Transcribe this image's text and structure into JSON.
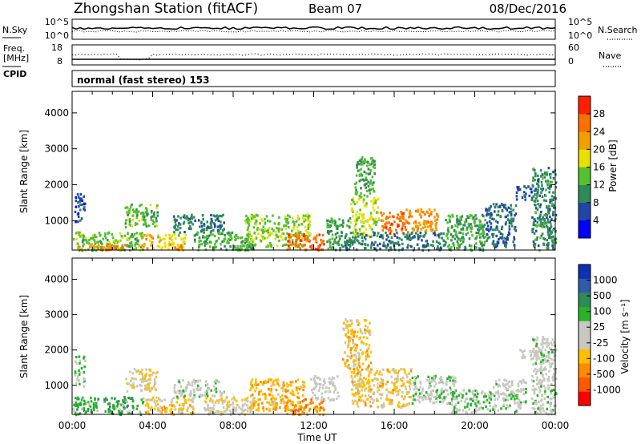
{
  "header": {
    "station": "Zhongshan Station (fitACF)",
    "beam": "Beam 07",
    "date": "08/Dec/2016"
  },
  "top_panels": {
    "nsky_label": "N.Sky",
    "nsearch_label": "N.Search",
    "nsky_ticks": [
      "10^5",
      "10^0"
    ],
    "nsearch_ticks": [
      "10^5",
      "10^0"
    ],
    "freq_label_1": "Freq.",
    "freq_label_2": "[MHz]",
    "freq_ticks": [
      "18",
      "8"
    ],
    "nave_ticks": [
      "60",
      "0"
    ],
    "nave_label": "Nave",
    "cpid_label": "CPID",
    "cpid_text": "normal (fast stereo) 153"
  },
  "colors": {
    "power": [
      "#0000ff",
      "#2046a8",
      "#2e8b57",
      "#55c030",
      "#e8e000",
      "#f0a000",
      "#ff7000",
      "#ff2000"
    ],
    "velocity": [
      "#ff0000",
      "#ff5a00",
      "#ff8c00",
      "#ffbf00",
      "#c8c8c0",
      "#c8c8c0",
      "#28b428",
      "#2e8b57",
      "#2f5ba8",
      "#1030b0"
    ]
  },
  "chart_data": [
    {
      "type": "heatmap",
      "name": "Power",
      "ylabel": "Slant Range [km]",
      "colorbar_label": "Power [dB]",
      "colorbar_ticks": [
        "28",
        "24",
        "20",
        "16",
        "12",
        "8",
        "4"
      ],
      "colorbar_range": [
        0,
        32
      ],
      "yticks": [
        "4000",
        "3000",
        "2000",
        "1000"
      ],
      "ylim": [
        180,
        4600
      ],
      "xlim_hours": [
        0,
        24
      ],
      "blobs": [
        {
          "t0": 0.0,
          "t1": 3.5,
          "r0": 200,
          "r1": 700,
          "v": 14
        },
        {
          "t0": 0.2,
          "t1": 2.8,
          "r0": 200,
          "r1": 380,
          "v": 24
        },
        {
          "t0": 0.1,
          "t1": 0.6,
          "r0": 1000,
          "r1": 1850,
          "v": 6
        },
        {
          "t0": 2.6,
          "t1": 4.2,
          "r0": 850,
          "r1": 1500,
          "v": 14
        },
        {
          "t0": 3.4,
          "t1": 4.0,
          "r0": 250,
          "r1": 650,
          "v": 22
        },
        {
          "t0": 4.2,
          "t1": 5.6,
          "r0": 200,
          "r1": 650,
          "v": 18
        },
        {
          "t0": 4.8,
          "t1": 5.4,
          "r0": 200,
          "r1": 380,
          "v": 26
        },
        {
          "t0": 5.0,
          "t1": 7.5,
          "r0": 700,
          "r1": 1200,
          "v": 9
        },
        {
          "t0": 6.0,
          "t1": 9.0,
          "r0": 200,
          "r1": 700,
          "v": 13
        },
        {
          "t0": 8.5,
          "t1": 11.8,
          "r0": 300,
          "r1": 1200,
          "v": 15
        },
        {
          "t0": 10.6,
          "t1": 12.6,
          "r0": 200,
          "r1": 650,
          "v": 26
        },
        {
          "t0": 12.6,
          "t1": 13.8,
          "r0": 200,
          "r1": 1100,
          "v": 11
        },
        {
          "t0": 13.8,
          "t1": 15.2,
          "r0": 600,
          "r1": 1700,
          "v": 17
        },
        {
          "t0": 14.0,
          "t1": 15.0,
          "r0": 1700,
          "r1": 2800,
          "v": 12
        },
        {
          "t0": 15.3,
          "t1": 16.5,
          "r0": 650,
          "r1": 1300,
          "v": 26
        },
        {
          "t0": 16.5,
          "t1": 18.2,
          "r0": 700,
          "r1": 1350,
          "v": 23
        },
        {
          "t0": 13.5,
          "t1": 18.5,
          "r0": 200,
          "r1": 700,
          "v": 9
        },
        {
          "t0": 18.5,
          "t1": 20.5,
          "r0": 200,
          "r1": 1200,
          "v": 12
        },
        {
          "t0": 20.5,
          "t1": 22.0,
          "r0": 300,
          "r1": 1500,
          "v": 8
        },
        {
          "t0": 22.0,
          "t1": 22.8,
          "r0": 1600,
          "r1": 2000,
          "v": 6
        },
        {
          "t0": 22.8,
          "t1": 24.0,
          "r0": 200,
          "r1": 2500,
          "v": 10
        }
      ]
    },
    {
      "type": "heatmap",
      "name": "Velocity",
      "ylabel": "Slant Range [km]",
      "colorbar_label": "Velocity [m s^-1]",
      "colorbar_ticks": [
        "1000",
        "500",
        "100",
        "25",
        "-25",
        "-100",
        "-500",
        "-1000"
      ],
      "colorbar_range": [
        -1200,
        1200
      ],
      "yticks": [
        "4000",
        "3000",
        "2000",
        "1000"
      ],
      "ylim": [
        180,
        4600
      ],
      "xlim_hours": [
        0,
        24
      ],
      "xticks": [
        "00:00",
        "04:00",
        "08:00",
        "12:00",
        "16:00",
        "20:00",
        "00:00"
      ],
      "xlabel": "Time UT",
      "blobs": [
        {
          "t0": 0.0,
          "t1": 3.5,
          "r0": 200,
          "r1": 700,
          "v": 400
        },
        {
          "t0": 0.1,
          "t1": 0.6,
          "r0": 1000,
          "r1": 1850,
          "v": 200
        },
        {
          "t0": 2.6,
          "t1": 4.2,
          "r0": 850,
          "r1": 1500,
          "v": -200
        },
        {
          "t0": 3.6,
          "t1": 6.0,
          "r0": 200,
          "r1": 700,
          "v": -300
        },
        {
          "t0": 5.0,
          "t1": 7.5,
          "r0": 700,
          "r1": 1200,
          "v": 100
        },
        {
          "t0": 6.5,
          "t1": 9.0,
          "r0": 200,
          "r1": 700,
          "v": -150
        },
        {
          "t0": 8.8,
          "t1": 11.5,
          "r0": 300,
          "r1": 1200,
          "v": -400
        },
        {
          "t0": 10.5,
          "t1": 12.6,
          "r0": 200,
          "r1": 650,
          "v": -600
        },
        {
          "t0": 11.8,
          "t1": 13.2,
          "r0": 600,
          "r1": 1300,
          "v": 0
        },
        {
          "t0": 13.4,
          "t1": 14.8,
          "r0": 1500,
          "r1": 2900,
          "v": -350
        },
        {
          "t0": 13.8,
          "t1": 16.8,
          "r0": 400,
          "r1": 1500,
          "v": -300
        },
        {
          "t0": 16.8,
          "t1": 19.0,
          "r0": 500,
          "r1": 1300,
          "v": 150
        },
        {
          "t0": 18.8,
          "t1": 20.8,
          "r0": 250,
          "r1": 900,
          "v": 200
        },
        {
          "t0": 20.8,
          "t1": 22.5,
          "r0": 300,
          "r1": 1200,
          "v": 150
        },
        {
          "t0": 22.2,
          "t1": 23.2,
          "r0": 1750,
          "r1": 2050,
          "v": 0
        },
        {
          "t0": 22.8,
          "t1": 24.0,
          "r0": 200,
          "r1": 2400,
          "v": 100
        }
      ]
    }
  ]
}
